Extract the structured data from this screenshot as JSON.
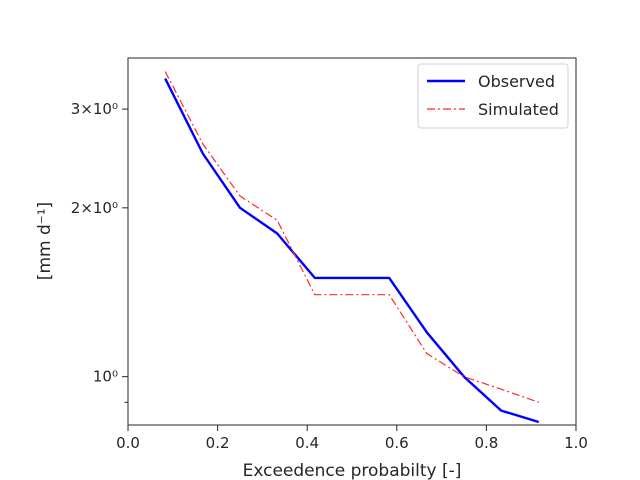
{
  "chart_data": {
    "type": "line",
    "xlabel": "Exceedence probabilty [-]",
    "ylabel": "[mm d⁻¹]",
    "xlim": [
      0.0,
      1.0
    ],
    "ylim": [
      0.82,
      3.7
    ],
    "yscale": "log",
    "grid": false,
    "legend_position": "top-right",
    "x_ticks": [
      0.0,
      0.2,
      0.4,
      0.6,
      0.8,
      1.0
    ],
    "x_tick_labels": [
      "0.0",
      "0.2",
      "0.4",
      "0.6",
      "0.8",
      "1.0"
    ],
    "y_major_ticks": [
      1,
      2,
      3
    ],
    "y_tick_labels": [
      "10⁰",
      "2×10⁰",
      "3×10⁰"
    ],
    "y_minor_ticks": [
      0.9
    ],
    "series": [
      {
        "name": "Observed",
        "color": "#0000ff",
        "style": "solid",
        "x": [
          0.083,
          0.167,
          0.25,
          0.333,
          0.417,
          0.5,
          0.583,
          0.667,
          0.75,
          0.833,
          0.917
        ],
        "y": [
          3.4,
          2.5,
          2.0,
          1.8,
          1.5,
          1.5,
          1.5,
          1.2,
          1.0,
          0.87,
          0.83
        ]
      },
      {
        "name": "Simulated",
        "color": "#ff2a2a",
        "style": "dashdot",
        "x": [
          0.083,
          0.167,
          0.25,
          0.333,
          0.417,
          0.5,
          0.583,
          0.667,
          0.75,
          0.833,
          0.917
        ],
        "y": [
          3.5,
          2.6,
          2.1,
          1.9,
          1.4,
          1.4,
          1.4,
          1.1,
          1.0,
          0.95,
          0.9
        ]
      }
    ]
  }
}
